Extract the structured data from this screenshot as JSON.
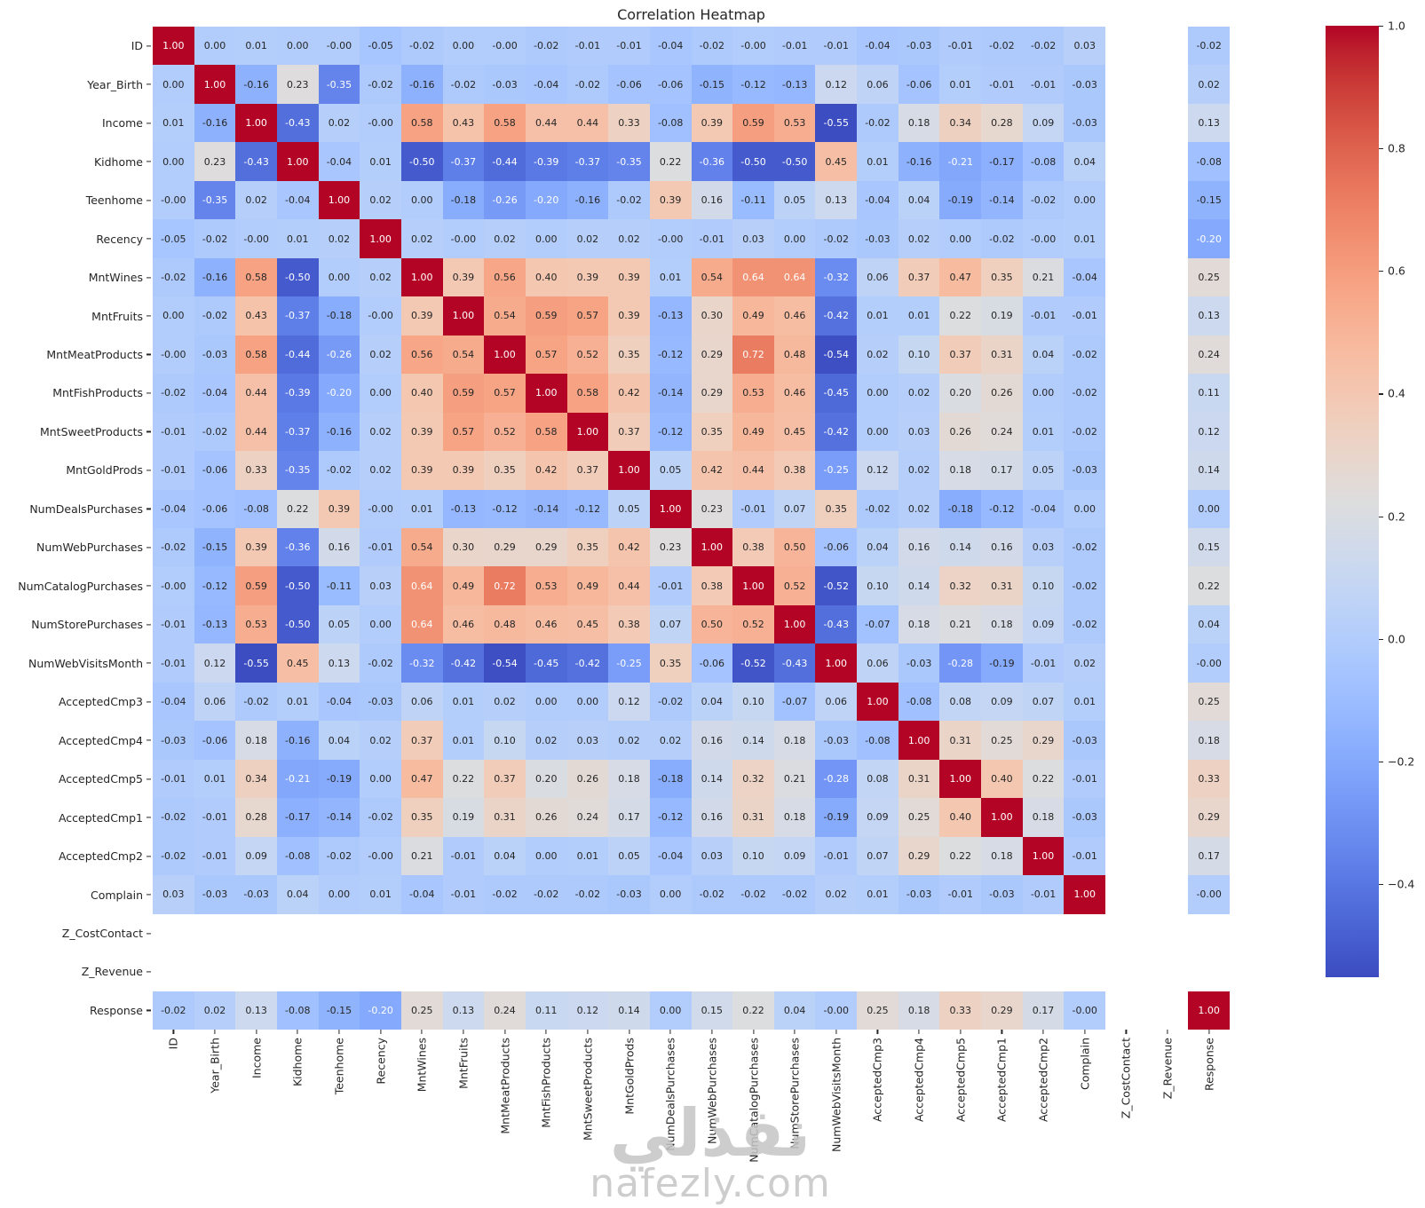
{
  "title": "Correlation Heatmap",
  "watermark": {
    "arabic": "نفذلي",
    "latin": "nafezly.com"
  },
  "colors": {
    "annotation_dark": "#262626",
    "annotation_light": "#ffffff",
    "background": "#ffffff",
    "colormap_low": "#3b4cc0",
    "colormap_mid": "#dddddd",
    "colormap_high": "#b40426"
  },
  "colorbar": {
    "ticks": [
      {
        "label": "1.0",
        "value": 1.0
      },
      {
        "label": "0.8",
        "value": 0.8
      },
      {
        "label": "0.6",
        "value": 0.6
      },
      {
        "label": "0.4",
        "value": 0.4
      },
      {
        "label": "0.2",
        "value": 0.2
      },
      {
        "label": "0.0",
        "value": 0.0
      },
      {
        "label": "−0.2",
        "value": -0.2
      },
      {
        "label": "−0.4",
        "value": -0.4
      }
    ]
  },
  "chart_data": {
    "type": "heatmap",
    "title": "Correlation Heatmap",
    "colormap": "coolwarm",
    "vmin": -0.552,
    "vmax": 1.0,
    "grid": false,
    "legend_position": "right-colorbar",
    "note_empty_rows": "Z_CostContact and Z_Revenue have no values (blank row/column)",
    "labels": [
      "ID",
      "Year_Birth",
      "Income",
      "Kidhome",
      "Teenhome",
      "Recency",
      "MntWines",
      "MntFruits",
      "MntMeatProducts",
      "MntFishProducts",
      "MntSweetProducts",
      "MntGoldProds",
      "NumDealsPurchases",
      "NumWebPurchases",
      "NumCatalogPurchases",
      "NumStorePurchases",
      "NumWebVisitsMonth",
      "AcceptedCmp3",
      "AcceptedCmp4",
      "AcceptedCmp5",
      "AcceptedCmp1",
      "AcceptedCmp2",
      "Complain",
      "Z_CostContact",
      "Z_Revenue",
      "Response"
    ],
    "matrix": [
      [
        "1.00",
        "0.00",
        "0.01",
        "0.00",
        "-0.00",
        "-0.05",
        "-0.02",
        "0.00",
        "-0.00",
        "-0.02",
        "-0.01",
        "-0.01",
        "-0.04",
        "-0.02",
        "-0.00",
        "-0.01",
        "-0.01",
        "-0.04",
        "-0.03",
        "-0.01",
        "-0.02",
        "-0.02",
        "0.03",
        null,
        null,
        "-0.02"
      ],
      [
        "0.00",
        "1.00",
        "-0.16",
        "0.23",
        "-0.35",
        "-0.02",
        "-0.16",
        "-0.02",
        "-0.03",
        "-0.04",
        "-0.02",
        "-0.06",
        "-0.06",
        "-0.15",
        "-0.12",
        "-0.13",
        "0.12",
        "0.06",
        "-0.06",
        "0.01",
        "-0.01",
        "-0.01",
        "-0.03",
        null,
        null,
        "0.02"
      ],
      [
        "0.01",
        "-0.16",
        "1.00",
        "-0.43",
        "0.02",
        "-0.00",
        "0.58",
        "0.43",
        "0.58",
        "0.44",
        "0.44",
        "0.33",
        "-0.08",
        "0.39",
        "0.59",
        "0.53",
        "-0.55",
        "-0.02",
        "0.18",
        "0.34",
        "0.28",
        "0.09",
        "-0.03",
        null,
        null,
        "0.13"
      ],
      [
        "0.00",
        "0.23",
        "-0.43",
        "1.00",
        "-0.04",
        "0.01",
        "-0.50",
        "-0.37",
        "-0.44",
        "-0.39",
        "-0.37",
        "-0.35",
        "0.22",
        "-0.36",
        "-0.50",
        "-0.50",
        "0.45",
        "0.01",
        "-0.16",
        "-0.21",
        "-0.17",
        "-0.08",
        "0.04",
        null,
        null,
        "-0.08"
      ],
      [
        "-0.00",
        "-0.35",
        "0.02",
        "-0.04",
        "1.00",
        "0.02",
        "0.00",
        "-0.18",
        "-0.26",
        "-0.20",
        "-0.16",
        "-0.02",
        "0.39",
        "0.16",
        "-0.11",
        "0.05",
        "0.13",
        "-0.04",
        "0.04",
        "-0.19",
        "-0.14",
        "-0.02",
        "0.00",
        null,
        null,
        "-0.15"
      ],
      [
        "-0.05",
        "-0.02",
        "-0.00",
        "0.01",
        "0.02",
        "1.00",
        "0.02",
        "-0.00",
        "0.02",
        "0.00",
        "0.02",
        "0.02",
        "-0.00",
        "-0.01",
        "0.03",
        "0.00",
        "-0.02",
        "-0.03",
        "0.02",
        "0.00",
        "-0.02",
        "-0.00",
        "0.01",
        null,
        null,
        "-0.20"
      ],
      [
        "-0.02",
        "-0.16",
        "0.58",
        "-0.50",
        "0.00",
        "0.02",
        "1.00",
        "0.39",
        "0.56",
        "0.40",
        "0.39",
        "0.39",
        "0.01",
        "0.54",
        "0.64",
        "0.64",
        "-0.32",
        "0.06",
        "0.37",
        "0.47",
        "0.35",
        "0.21",
        "-0.04",
        null,
        null,
        "0.25"
      ],
      [
        "0.00",
        "-0.02",
        "0.43",
        "-0.37",
        "-0.18",
        "-0.00",
        "0.39",
        "1.00",
        "0.54",
        "0.59",
        "0.57",
        "0.39",
        "-0.13",
        "0.30",
        "0.49",
        "0.46",
        "-0.42",
        "0.01",
        "0.01",
        "0.22",
        "0.19",
        "-0.01",
        "-0.01",
        null,
        null,
        "0.13"
      ],
      [
        "-0.00",
        "-0.03",
        "0.58",
        "-0.44",
        "-0.26",
        "0.02",
        "0.56",
        "0.54",
        "1.00",
        "0.57",
        "0.52",
        "0.35",
        "-0.12",
        "0.29",
        "0.72",
        "0.48",
        "-0.54",
        "0.02",
        "0.10",
        "0.37",
        "0.31",
        "0.04",
        "-0.02",
        null,
        null,
        "0.24"
      ],
      [
        "-0.02",
        "-0.04",
        "0.44",
        "-0.39",
        "-0.20",
        "0.00",
        "0.40",
        "0.59",
        "0.57",
        "1.00",
        "0.58",
        "0.42",
        "-0.14",
        "0.29",
        "0.53",
        "0.46",
        "-0.45",
        "0.00",
        "0.02",
        "0.20",
        "0.26",
        "0.00",
        "-0.02",
        null,
        null,
        "0.11"
      ],
      [
        "-0.01",
        "-0.02",
        "0.44",
        "-0.37",
        "-0.16",
        "0.02",
        "0.39",
        "0.57",
        "0.52",
        "0.58",
        "1.00",
        "0.37",
        "-0.12",
        "0.35",
        "0.49",
        "0.45",
        "-0.42",
        "0.00",
        "0.03",
        "0.26",
        "0.24",
        "0.01",
        "-0.02",
        null,
        null,
        "0.12"
      ],
      [
        "-0.01",
        "-0.06",
        "0.33",
        "-0.35",
        "-0.02",
        "0.02",
        "0.39",
        "0.39",
        "0.35",
        "0.42",
        "0.37",
        "1.00",
        "0.05",
        "0.42",
        "0.44",
        "0.38",
        "-0.25",
        "0.12",
        "0.02",
        "0.18",
        "0.17",
        "0.05",
        "-0.03",
        null,
        null,
        "0.14"
      ],
      [
        "-0.04",
        "-0.06",
        "-0.08",
        "0.22",
        "0.39",
        "-0.00",
        "0.01",
        "-0.13",
        "-0.12",
        "-0.14",
        "-0.12",
        "0.05",
        "1.00",
        "0.23",
        "-0.01",
        "0.07",
        "0.35",
        "-0.02",
        "0.02",
        "-0.18",
        "-0.12",
        "-0.04",
        "0.00",
        null,
        null,
        "0.00"
      ],
      [
        "-0.02",
        "-0.15",
        "0.39",
        "-0.36",
        "0.16",
        "-0.01",
        "0.54",
        "0.30",
        "0.29",
        "0.29",
        "0.35",
        "0.42",
        "0.23",
        "1.00",
        "0.38",
        "0.50",
        "-0.06",
        "0.04",
        "0.16",
        "0.14",
        "0.16",
        "0.03",
        "-0.02",
        null,
        null,
        "0.15"
      ],
      [
        "-0.00",
        "-0.12",
        "0.59",
        "-0.50",
        "-0.11",
        "0.03",
        "0.64",
        "0.49",
        "0.72",
        "0.53",
        "0.49",
        "0.44",
        "-0.01",
        "0.38",
        "1.00",
        "0.52",
        "-0.52",
        "0.10",
        "0.14",
        "0.32",
        "0.31",
        "0.10",
        "-0.02",
        null,
        null,
        "0.22"
      ],
      [
        "-0.01",
        "-0.13",
        "0.53",
        "-0.50",
        "0.05",
        "0.00",
        "0.64",
        "0.46",
        "0.48",
        "0.46",
        "0.45",
        "0.38",
        "0.07",
        "0.50",
        "0.52",
        "1.00",
        "-0.43",
        "-0.07",
        "0.18",
        "0.21",
        "0.18",
        "0.09",
        "-0.02",
        null,
        null,
        "0.04"
      ],
      [
        "-0.01",
        "0.12",
        "-0.55",
        "0.45",
        "0.13",
        "-0.02",
        "-0.32",
        "-0.42",
        "-0.54",
        "-0.45",
        "-0.42",
        "-0.25",
        "0.35",
        "-0.06",
        "-0.52",
        "-0.43",
        "1.00",
        "0.06",
        "-0.03",
        "-0.28",
        "-0.19",
        "-0.01",
        "0.02",
        null,
        null,
        "-0.00"
      ],
      [
        "-0.04",
        "0.06",
        "-0.02",
        "0.01",
        "-0.04",
        "-0.03",
        "0.06",
        "0.01",
        "0.02",
        "0.00",
        "0.00",
        "0.12",
        "-0.02",
        "0.04",
        "0.10",
        "-0.07",
        "0.06",
        "1.00",
        "-0.08",
        "0.08",
        "0.09",
        "0.07",
        "0.01",
        null,
        null,
        "0.25"
      ],
      [
        "-0.03",
        "-0.06",
        "0.18",
        "-0.16",
        "0.04",
        "0.02",
        "0.37",
        "0.01",
        "0.10",
        "0.02",
        "0.03",
        "0.02",
        "0.02",
        "0.16",
        "0.14",
        "0.18",
        "-0.03",
        "-0.08",
        "1.00",
        "0.31",
        "0.25",
        "0.29",
        "-0.03",
        null,
        null,
        "0.18"
      ],
      [
        "-0.01",
        "0.01",
        "0.34",
        "-0.21",
        "-0.19",
        "0.00",
        "0.47",
        "0.22",
        "0.37",
        "0.20",
        "0.26",
        "0.18",
        "-0.18",
        "0.14",
        "0.32",
        "0.21",
        "-0.28",
        "0.08",
        "0.31",
        "1.00",
        "0.40",
        "0.22",
        "-0.01",
        null,
        null,
        "0.33"
      ],
      [
        "-0.02",
        "-0.01",
        "0.28",
        "-0.17",
        "-0.14",
        "-0.02",
        "0.35",
        "0.19",
        "0.31",
        "0.26",
        "0.24",
        "0.17",
        "-0.12",
        "0.16",
        "0.31",
        "0.18",
        "-0.19",
        "0.09",
        "0.25",
        "0.40",
        "1.00",
        "0.18",
        "-0.03",
        null,
        null,
        "0.29"
      ],
      [
        "-0.02",
        "-0.01",
        "0.09",
        "-0.08",
        "-0.02",
        "-0.00",
        "0.21",
        "-0.01",
        "0.04",
        "0.00",
        "0.01",
        "0.05",
        "-0.04",
        "0.03",
        "0.10",
        "0.09",
        "-0.01",
        "0.07",
        "0.29",
        "0.22",
        "0.18",
        "1.00",
        "-0.01",
        null,
        null,
        "0.17"
      ],
      [
        "0.03",
        "-0.03",
        "-0.03",
        "0.04",
        "0.00",
        "0.01",
        "-0.04",
        "-0.01",
        "-0.02",
        "-0.02",
        "-0.02",
        "-0.03",
        "0.00",
        "-0.02",
        "-0.02",
        "-0.02",
        "0.02",
        "0.01",
        "-0.03",
        "-0.01",
        "-0.03",
        "-0.01",
        "1.00",
        null,
        null,
        "-0.00"
      ],
      [
        null,
        null,
        null,
        null,
        null,
        null,
        null,
        null,
        null,
        null,
        null,
        null,
        null,
        null,
        null,
        null,
        null,
        null,
        null,
        null,
        null,
        null,
        null,
        null,
        null,
        null
      ],
      [
        null,
        null,
        null,
        null,
        null,
        null,
        null,
        null,
        null,
        null,
        null,
        null,
        null,
        null,
        null,
        null,
        null,
        null,
        null,
        null,
        null,
        null,
        null,
        null,
        null,
        null
      ],
      [
        "-0.02",
        "0.02",
        "0.13",
        "-0.08",
        "-0.15",
        "-0.20",
        "0.25",
        "0.13",
        "0.24",
        "0.11",
        "0.12",
        "0.14",
        "0.00",
        "0.15",
        "0.22",
        "0.04",
        "-0.00",
        "0.25",
        "0.18",
        "0.33",
        "0.29",
        "0.17",
        "-0.00",
        null,
        null,
        "1.00"
      ]
    ]
  }
}
